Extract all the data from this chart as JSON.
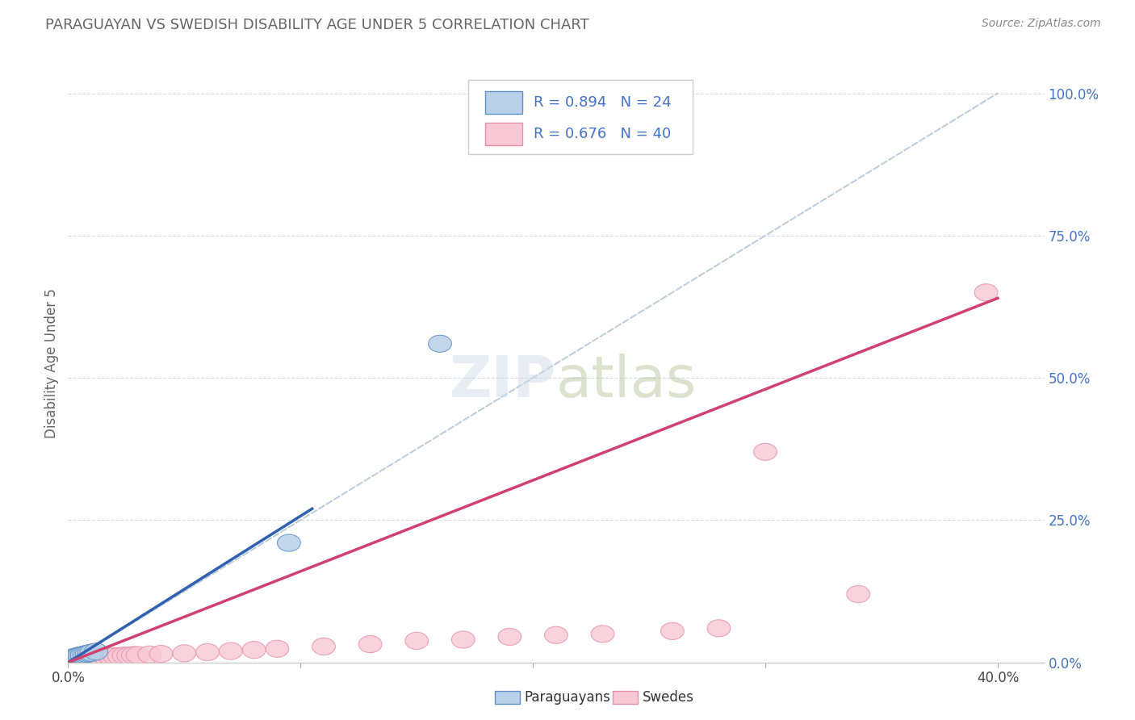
{
  "title": "PARAGUAYAN VS SWEDISH DISABILITY AGE UNDER 5 CORRELATION CHART",
  "source_text": "Source: ZipAtlas.com",
  "ylabel": "Disability Age Under 5",
  "xlim": [
    0.0,
    0.42
  ],
  "ylim": [
    0.0,
    1.05
  ],
  "xticks": [
    0.0,
    0.1,
    0.2,
    0.3,
    0.4
  ],
  "xtick_labels": [
    "0.0%",
    "",
    "",
    "",
    "40.0%"
  ],
  "ytick_labels_right": [
    "100.0%",
    "75.0%",
    "50.0%",
    "25.0%",
    "0.0%"
  ],
  "yticks_right": [
    1.0,
    0.75,
    0.5,
    0.25,
    0.0
  ],
  "blue_R": 0.894,
  "blue_N": 24,
  "pink_R": 0.676,
  "pink_N": 40,
  "background_color": "#ffffff",
  "grid_color": "#d8d8e8",
  "title_color": "#666666",
  "rn_color": "#4472c4",
  "legend_label1": "Paraguayans",
  "legend_label2": "Swedes",
  "blue_fill": "#b8d0e8",
  "blue_edge": "#6090c8",
  "pink_fill": "#f8c8d4",
  "pink_edge": "#e890a8",
  "blue_line_color": "#3060b0",
  "pink_line_color": "#d04070",
  "ref_line_color": "#b8c8d8",
  "paraguayan_x": [
    0.0005,
    0.001,
    0.001,
    0.001,
    0.001,
    0.002,
    0.002,
    0.002,
    0.003,
    0.003,
    0.003,
    0.004,
    0.004,
    0.005,
    0.005,
    0.006,
    0.006,
    0.007,
    0.008,
    0.009,
    0.01,
    0.012,
    0.095,
    0.16
  ],
  "paraguayan_y": [
    0.002,
    0.003,
    0.004,
    0.005,
    0.006,
    0.006,
    0.007,
    0.008,
    0.008,
    0.009,
    0.01,
    0.01,
    0.011,
    0.011,
    0.012,
    0.012,
    0.013,
    0.014,
    0.015,
    0.016,
    0.017,
    0.019,
    0.21,
    0.56
  ],
  "swedish_x": [
    0.001,
    0.002,
    0.003,
    0.004,
    0.005,
    0.006,
    0.007,
    0.008,
    0.009,
    0.01,
    0.011,
    0.012,
    0.014,
    0.016,
    0.018,
    0.02,
    0.022,
    0.024,
    0.026,
    0.028,
    0.03,
    0.035,
    0.04,
    0.05,
    0.06,
    0.07,
    0.08,
    0.09,
    0.11,
    0.13,
    0.15,
    0.17,
    0.19,
    0.21,
    0.23,
    0.26,
    0.28,
    0.3,
    0.34,
    0.395
  ],
  "swedish_y": [
    0.002,
    0.003,
    0.004,
    0.005,
    0.005,
    0.006,
    0.006,
    0.007,
    0.007,
    0.008,
    0.008,
    0.009,
    0.009,
    0.01,
    0.01,
    0.011,
    0.011,
    0.012,
    0.012,
    0.013,
    0.013,
    0.014,
    0.015,
    0.016,
    0.018,
    0.02,
    0.022,
    0.024,
    0.028,
    0.032,
    0.038,
    0.04,
    0.045,
    0.048,
    0.05,
    0.055,
    0.06,
    0.37,
    0.12,
    0.65
  ],
  "blue_line_x": [
    0.0,
    0.105
  ],
  "blue_line_y": [
    0.0,
    0.27
  ],
  "pink_line_x": [
    0.0,
    0.4
  ],
  "pink_line_y": [
    0.0,
    0.64
  ]
}
